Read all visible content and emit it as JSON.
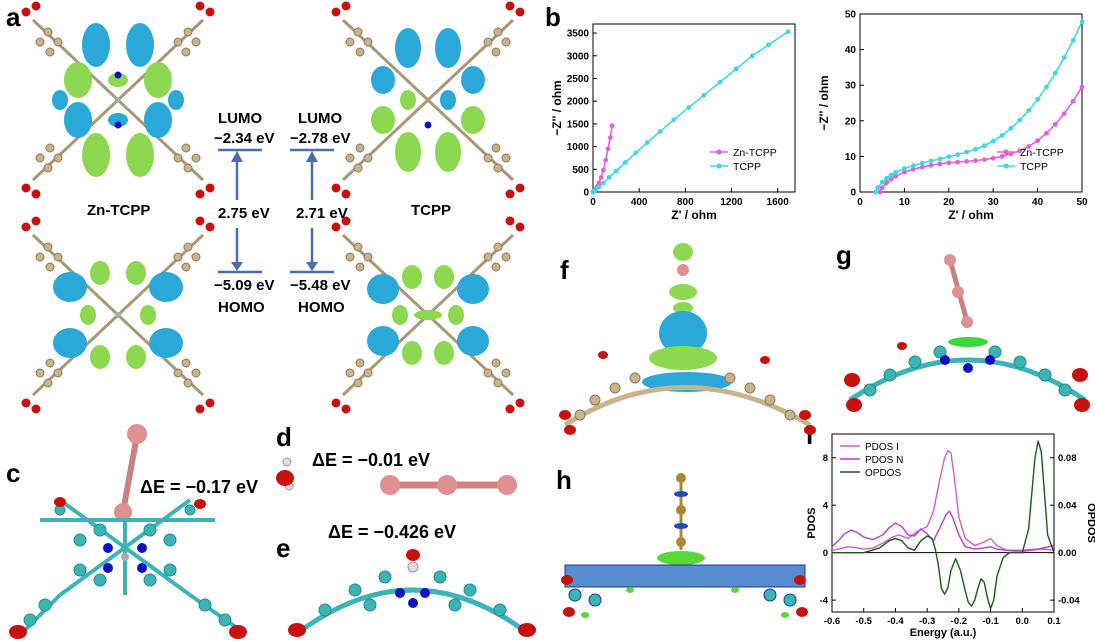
{
  "panel_a": {
    "letter": "a",
    "left_molecule": "Zn-TCPP",
    "right_molecule": "TCPP",
    "left_lumo_label": "LUMO",
    "left_lumo_energy": "−2.34 eV",
    "right_lumo_label": "LUMO",
    "right_lumo_energy": "−2.78 eV",
    "left_gap": "2.75 eV",
    "right_gap": "2.71 eV",
    "left_homo_energy": "−5.09 eV",
    "left_homo_label": "HOMO",
    "right_homo_energy": "−5.48 eV",
    "right_homo_label": "HOMO"
  },
  "panel_b": {
    "letter": "b"
  },
  "panel_c": {
    "letter": "c",
    "energy": "ΔE = −0.17 eV"
  },
  "panel_d": {
    "letter": "d",
    "energy": "ΔE = −0.01 eV"
  },
  "panel_e": {
    "letter": "e",
    "energy": "ΔE = −0.426 eV"
  },
  "panel_f": {
    "letter": "f"
  },
  "panel_g": {
    "letter": "g"
  },
  "panel_h": {
    "letter": "h"
  },
  "panel_i": {
    "letter": "i"
  },
  "colors": {
    "zn_tcpp": "#e060d8",
    "tcpp": "#40d8e0",
    "pdos_i": "#d060c0",
    "pdos_n": "#b040d0",
    "opdos": "#1a5c1a",
    "orbital_blue": "#2aa8d8",
    "orbital_green": "#8cd850",
    "carbon": "#c8b48c",
    "carbon_cyan": "#3ab4b4",
    "oxygen": "#c81010",
    "nitrogen": "#1010c0",
    "iodine": "#e09090",
    "level_line": "#4a6ea8"
  },
  "chart_data": [
    {
      "type": "scatter",
      "panel": "b-left",
      "xlabel": "Z' / ohm",
      "ylabel": "−Z'' / ohm",
      "xlim": [
        0,
        1750
      ],
      "ylim": [
        0,
        3700
      ],
      "xticks": [
        "0",
        "400",
        "800",
        "1200",
        "1600"
      ],
      "yticks": [
        "0",
        "500",
        "1000",
        "1500",
        "2000",
        "2500",
        "3000",
        "3500"
      ],
      "legend_position": "lower-right",
      "series": [
        {
          "name": "Zn-TCPP",
          "x": [
            0,
            10,
            20,
            35,
            50,
            70,
            90,
            110,
            130,
            150,
            165
          ],
          "y": [
            0,
            20,
            60,
            120,
            200,
            320,
            480,
            700,
            950,
            1200,
            1460
          ]
        },
        {
          "name": "TCPP",
          "x": [
            0,
            20,
            50,
            90,
            140,
            200,
            280,
            370,
            470,
            580,
            700,
            830,
            960,
            1100,
            1240,
            1380,
            1520,
            1690
          ],
          "y": [
            0,
            40,
            110,
            200,
            320,
            460,
            650,
            860,
            1090,
            1330,
            1590,
            1860,
            2130,
            2420,
            2710,
            3000,
            3240,
            3530
          ]
        }
      ]
    },
    {
      "type": "scatter",
      "panel": "b-right",
      "xlabel": "Z' / ohm",
      "ylabel": "−Z'' / ohm",
      "xlim": [
        0,
        50
      ],
      "ylim": [
        0,
        50
      ],
      "xticks": [
        "0",
        "10",
        "20",
        "30",
        "40",
        "50"
      ],
      "yticks": [
        "0",
        "10",
        "20",
        "30",
        "40",
        "50"
      ],
      "legend_position": "lower-right",
      "series": [
        {
          "name": "Zn-TCPP",
          "x": [
            4.5,
            5,
            6,
            7,
            8,
            10,
            12,
            14,
            16,
            18,
            20,
            22,
            24,
            26,
            28,
            30,
            32,
            34,
            36,
            38,
            40,
            42,
            44,
            46,
            48,
            50
          ],
          "y": [
            0,
            1.2,
            2.6,
            3.6,
            4.4,
            5.6,
            6.4,
            7.0,
            7.5,
            7.9,
            8.2,
            8.4,
            8.6,
            8.8,
            9.1,
            9.5,
            10.0,
            10.7,
            11.6,
            12.8,
            14.4,
            16.5,
            19.0,
            22.0,
            25.5,
            29.5
          ]
        },
        {
          "name": "TCPP",
          "x": [
            3.5,
            4,
            5,
            6,
            7,
            8,
            10,
            12,
            14,
            16,
            18,
            20,
            22,
            24,
            26,
            28,
            30,
            32,
            34,
            36,
            38,
            40,
            42,
            44,
            46,
            48,
            50
          ],
          "y": [
            0,
            1.2,
            2.8,
            3.9,
            4.8,
            5.5,
            6.6,
            7.4,
            8.1,
            8.7,
            9.3,
            9.9,
            10.5,
            11.2,
            12.0,
            13.0,
            14.3,
            15.9,
            17.9,
            20.2,
            22.9,
            26.0,
            29.5,
            33.4,
            37.8,
            42.6,
            47.8
          ]
        }
      ]
    },
    {
      "type": "line",
      "panel": "i",
      "xlabel": "Energy (a.u.)",
      "ylabel": "PDOS",
      "y2label": "OPDOS",
      "xlim": [
        -0.6,
        0.1
      ],
      "ylim": [
        -5,
        10
      ],
      "y2lim": [
        -0.05,
        0.1
      ],
      "xticks": [
        "-0.6",
        "-0.5",
        "-0.4",
        "-0.3",
        "-0.2",
        "-0.1",
        "0.0",
        "0.1"
      ],
      "yticks": [
        "-4",
        "0",
        "4",
        "8"
      ],
      "y2ticks": [
        "-0.04",
        "0.00",
        "0.04",
        "0.08"
      ],
      "legend_position": "top-left",
      "series": [
        {
          "name": "PDOS I",
          "x": [
            -0.6,
            -0.58,
            -0.55,
            -0.52,
            -0.5,
            -0.47,
            -0.44,
            -0.41,
            -0.39,
            -0.36,
            -0.33,
            -0.3,
            -0.28,
            -0.26,
            -0.245,
            -0.235,
            -0.225,
            -0.215,
            -0.2,
            -0.18,
            -0.15,
            -0.12,
            -0.1,
            -0.08,
            -0.05,
            -0.02,
            0.0,
            0.03,
            0.06,
            0.1
          ],
          "y": [
            0.2,
            0.3,
            0.5,
            0.4,
            0.3,
            0.4,
            0.8,
            1.3,
            1.5,
            1.2,
            1.8,
            2.2,
            3.5,
            6.2,
            8.0,
            8.6,
            8.4,
            6.5,
            3.0,
            1.2,
            0.6,
            0.9,
            1.2,
            0.6,
            0.2,
            0.1,
            0.1,
            0.2,
            0.3,
            0.2
          ]
        },
        {
          "name": "PDOS N",
          "x": [
            -0.6,
            -0.58,
            -0.56,
            -0.54,
            -0.52,
            -0.5,
            -0.47,
            -0.44,
            -0.42,
            -0.4,
            -0.38,
            -0.36,
            -0.34,
            -0.32,
            -0.3,
            -0.28,
            -0.26,
            -0.24,
            -0.23,
            -0.22,
            -0.2,
            -0.18,
            -0.15,
            -0.12,
            -0.1,
            -0.08,
            -0.05,
            0.0,
            0.05,
            0.1
          ],
          "y": [
            0.5,
            1.0,
            1.6,
            1.9,
            1.7,
            1.3,
            1.1,
            1.5,
            2.1,
            2.5,
            2.2,
            1.5,
            1.4,
            2.0,
            1.6,
            1.0,
            2.1,
            3.2,
            3.5,
            3.0,
            1.5,
            0.5,
            0.3,
            0.4,
            0.5,
            0.3,
            0.2,
            0.2,
            0.3,
            0.6
          ]
        },
        {
          "name": "OPDOS",
          "axis": "y2",
          "x": [
            -0.6,
            -0.55,
            -0.5,
            -0.45,
            -0.42,
            -0.4,
            -0.38,
            -0.36,
            -0.34,
            -0.32,
            -0.3,
            -0.285,
            -0.275,
            -0.265,
            -0.255,
            -0.245,
            -0.235,
            -0.225,
            -0.21,
            -0.195,
            -0.18,
            -0.17,
            -0.16,
            -0.15,
            -0.14,
            -0.13,
            -0.12,
            -0.11,
            -0.1,
            -0.09,
            -0.08,
            -0.06,
            -0.04,
            -0.02,
            0.0,
            0.02,
            0.03,
            0.04,
            0.05,
            0.06,
            0.07,
            0.08,
            0.1
          ],
          "y": [
            0.0,
            0.0,
            0.0,
            0.004,
            0.01,
            0.012,
            0.01,
            0.004,
            0.002,
            0.01,
            0.014,
            0.012,
            0.004,
            -0.01,
            -0.03,
            -0.035,
            -0.03,
            -0.015,
            -0.005,
            -0.015,
            -0.032,
            -0.042,
            -0.045,
            -0.04,
            -0.03,
            -0.022,
            -0.025,
            -0.038,
            -0.047,
            -0.04,
            -0.02,
            -0.004,
            0.0,
            0.0,
            0.0,
            0.02,
            0.05,
            0.08,
            0.094,
            0.085,
            0.05,
            0.015,
            0.0
          ]
        }
      ]
    }
  ]
}
